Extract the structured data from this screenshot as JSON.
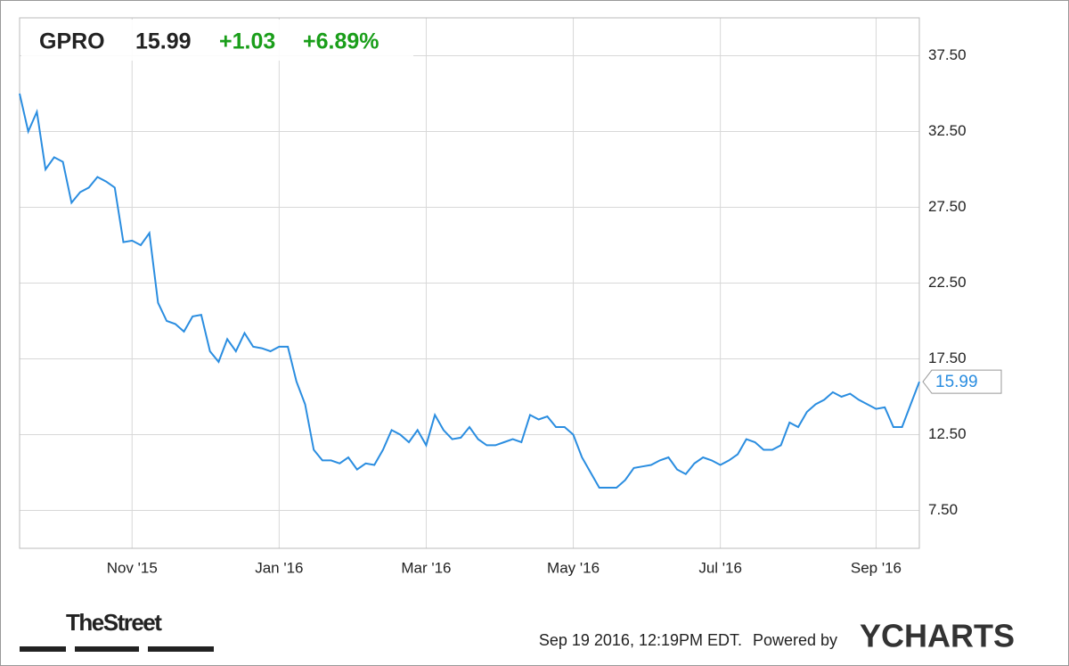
{
  "chart_data": {
    "type": "line",
    "header": {
      "ticker": "GPRO",
      "price": "15.99",
      "change": "+1.03",
      "change_pct": "+6.89%"
    },
    "categories": [
      null,
      null,
      null,
      null,
      null,
      null,
      null,
      null,
      null,
      null,
      null,
      null,
      null,
      "Nov '15",
      null,
      null,
      null,
      null,
      null,
      null,
      null,
      null,
      null,
      null,
      null,
      null,
      null,
      null,
      null,
      null,
      "Jan '16",
      null,
      null,
      null,
      null,
      null,
      null,
      null,
      null,
      null,
      null,
      null,
      null,
      null,
      null,
      null,
      null,
      "Mar '16",
      null,
      null,
      null,
      null,
      null,
      null,
      null,
      null,
      null,
      null,
      null,
      null,
      null,
      null,
      null,
      null,
      "May '16",
      null,
      null,
      null,
      null,
      null,
      null,
      null,
      null,
      null,
      null,
      null,
      null,
      null,
      null,
      null,
      null,
      "Jul '16",
      null,
      null,
      null,
      null,
      null,
      null,
      null,
      null,
      null,
      null,
      null,
      null,
      null,
      null,
      null,
      null,
      null,
      "Sep '16",
      null,
      null,
      null,
      null,
      null
    ],
    "series": [
      {
        "name": "GPRO",
        "color": "#2a8de0",
        "values": [
          35.0,
          32.5,
          33.8,
          30.0,
          30.8,
          30.5,
          27.8,
          28.5,
          28.8,
          29.5,
          29.2,
          28.8,
          25.2,
          25.3,
          25.0,
          25.8,
          21.2,
          20.0,
          19.8,
          19.3,
          20.3,
          20.4,
          18.0,
          17.3,
          18.8,
          18.0,
          19.2,
          18.3,
          18.2,
          18.0,
          18.3,
          18.3,
          16.0,
          14.5,
          11.5,
          10.8,
          10.8,
          10.6,
          11.0,
          10.2,
          10.6,
          10.5,
          11.5,
          12.8,
          12.5,
          12.0,
          12.8,
          11.8,
          13.8,
          12.8,
          12.2,
          12.3,
          13.0,
          12.2,
          11.8,
          11.8,
          12.0,
          12.2,
          12.0,
          13.8,
          13.5,
          13.7,
          13.0,
          13.0,
          12.5,
          11.0,
          10.0,
          9.0,
          9.0,
          9.0,
          9.5,
          10.3,
          10.4,
          10.5,
          10.8,
          11.0,
          10.2,
          9.9,
          10.6,
          11.0,
          10.8,
          10.5,
          10.8,
          11.2,
          12.2,
          12.0,
          11.5,
          11.5,
          11.8,
          13.3,
          13.0,
          14.0,
          14.5,
          14.8,
          15.3,
          15.0,
          15.2,
          14.8,
          14.5,
          14.2,
          14.3,
          13.0,
          13.0,
          14.5,
          15.99
        ]
      }
    ],
    "ylim": [
      5,
      40
    ],
    "yticks": [
      {
        "value": 7.5,
        "label": "7.50"
      },
      {
        "value": 12.5,
        "label": "12.50"
      },
      {
        "value": 17.5,
        "label": "17.50"
      },
      {
        "value": 22.5,
        "label": "22.50"
      },
      {
        "value": 27.5,
        "label": "27.50"
      },
      {
        "value": 32.5,
        "label": "32.50"
      },
      {
        "value": 37.5,
        "label": "37.50"
      }
    ],
    "grid": true,
    "footer": {
      "timestamp": "Sep 19 2016, 12:19PM EDT.",
      "powered": "Powered by",
      "brand": "YCHARTS",
      "source": "TheStreet"
    }
  }
}
